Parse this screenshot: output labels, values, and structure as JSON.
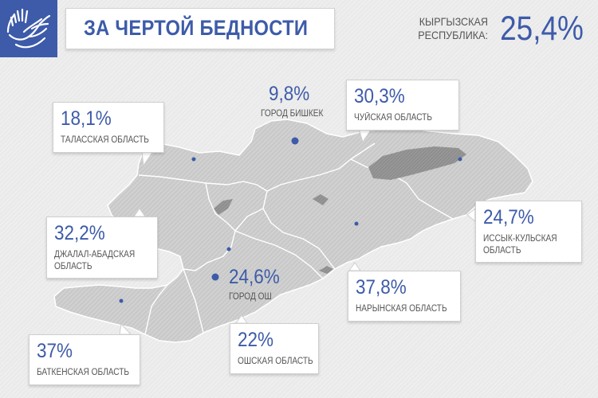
{
  "header": {
    "title": "ЗА ЧЕРТОЙ БЕДНОСТИ",
    "country_label": "КЫРГЫЗСКАЯ РЕСПУБЛИКА:",
    "country_value": "25,4%"
  },
  "colors": {
    "accent": "#3d5ba9",
    "map_fill": "#cfcfcf",
    "lake_fill": "#9a9a9a",
    "background": "#eaeaea"
  },
  "icons": {
    "logo": "hands-icon"
  },
  "regions": [
    {
      "id": "bishkek",
      "value": "9,8%",
      "name": "ГОРОД БИШКЕК"
    },
    {
      "id": "chui",
      "value": "30,3%",
      "name": "ЧУЙСКАЯ ОБЛАСТЬ"
    },
    {
      "id": "talas",
      "value": "18,1%",
      "name": "ТАЛАССКАЯ ОБЛАСТЬ"
    },
    {
      "id": "jalal_abad",
      "value": "32,2%",
      "name": "ДЖАЛАЛ-АБАДСКАЯ ОБЛАСТЬ",
      "name_lines": [
        "ДЖАЛАЛ-АБАДСКАЯ",
        "ОБЛАСТЬ"
      ]
    },
    {
      "id": "issyk_kul",
      "value": "24,7%",
      "name": "ИССЫК-КУЛЬСКАЯ ОБЛАСТЬ",
      "name_lines": [
        "ИССЫК-КУЛЬСКАЯ",
        "ОБЛАСТЬ"
      ]
    },
    {
      "id": "osh_city",
      "value": "24,6%",
      "name": "ГОРОД ОШ"
    },
    {
      "id": "naryn",
      "value": "37,8%",
      "name": "НАРЫНСКАЯ ОБЛАСТЬ"
    },
    {
      "id": "osh",
      "value": "22%",
      "name": "ОШСКАЯ ОБЛАСТЬ"
    },
    {
      "id": "batken",
      "value": "37%",
      "name": "БАТКЕНСКАЯ ОБЛАСТЬ"
    }
  ]
}
